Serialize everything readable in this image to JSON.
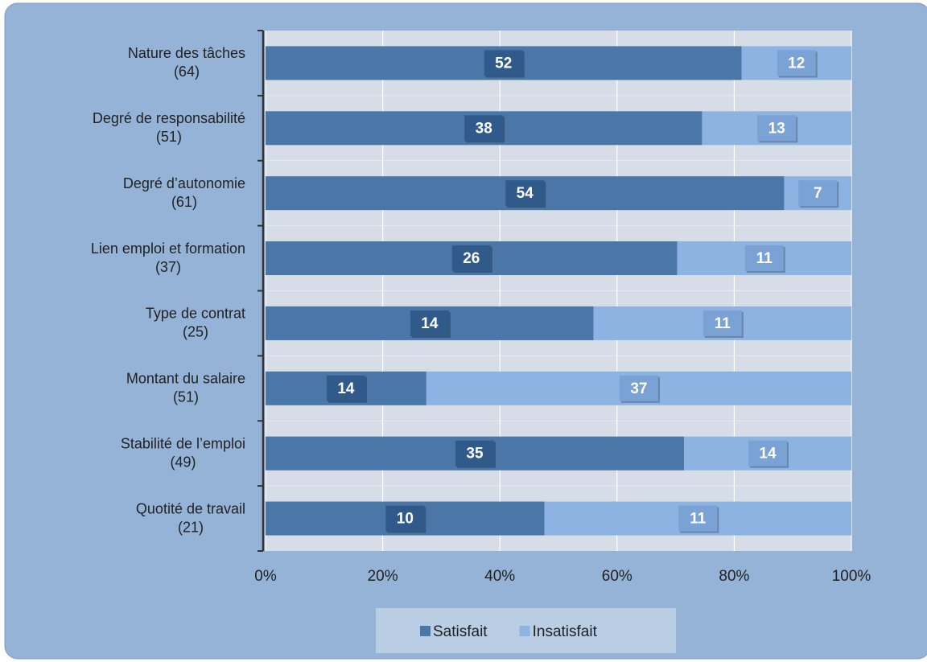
{
  "chart_data": {
    "type": "bar",
    "orientation": "horizontal",
    "stacked": "percent",
    "categories": [
      "Nature des tâches",
      "Degré de responsabilité",
      "Degré d’autonomie",
      "Lien emploi et formation",
      "Type de contrat",
      "Montant du salaire",
      "Stabilité de l’emploi",
      "Quotité de travail"
    ],
    "category_notes": [
      "(64)",
      "(51)",
      "(61)",
      "(37)",
      "(25)",
      "(51)",
      "(49)",
      "(21)"
    ],
    "series": [
      {
        "name": "Satisfait",
        "color": "#4a76a8",
        "label_color": "#2f5a8a",
        "values": [
          52,
          38,
          54,
          26,
          14,
          14,
          35,
          10
        ]
      },
      {
        "name": "Insatisfait",
        "color": "#8db3e2",
        "label_color": "#7aa2d4",
        "values": [
          12,
          13,
          7,
          11,
          11,
          37,
          14,
          11
        ]
      }
    ],
    "xlim": [
      0,
      100
    ],
    "xticks": [
      {
        "value": 0,
        "label": "0%"
      },
      {
        "value": 20,
        "label": "20%"
      },
      {
        "value": 40,
        "label": "40%"
      },
      {
        "value": 60,
        "label": "60%"
      },
      {
        "value": 80,
        "label": "80%"
      },
      {
        "value": 100,
        "label": "100%"
      }
    ],
    "grid": true,
    "legend": "bottom"
  }
}
